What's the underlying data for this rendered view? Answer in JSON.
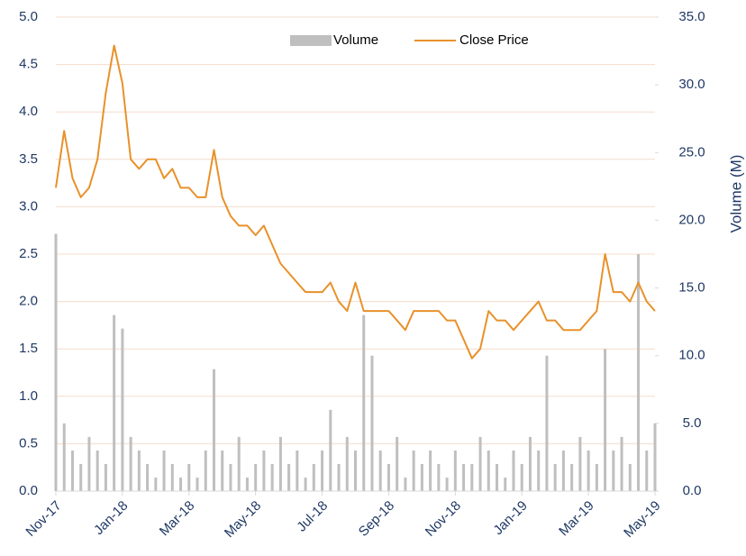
{
  "chart_data": {
    "type": "combo",
    "y2_label": "Volume (M)",
    "categories": [
      "Nov-17",
      null,
      null,
      null,
      null,
      null,
      null,
      null,
      "Jan-18",
      null,
      null,
      null,
      null,
      null,
      null,
      null,
      "Mar-18",
      null,
      null,
      null,
      null,
      null,
      null,
      null,
      "May-18",
      null,
      null,
      null,
      null,
      null,
      null,
      null,
      "Jul-18",
      null,
      null,
      null,
      null,
      null,
      null,
      null,
      "Sep-18",
      null,
      null,
      null,
      null,
      null,
      null,
      null,
      "Nov-18",
      null,
      null,
      null,
      null,
      null,
      null,
      null,
      "Jan-19",
      null,
      null,
      null,
      null,
      null,
      null,
      null,
      "Mar-19",
      null,
      null,
      null,
      null,
      null,
      null,
      null,
      "May-19"
    ],
    "series": [
      {
        "name": "Volume",
        "type": "bar",
        "axis": "y2",
        "color": "#bfbfbf",
        "values": [
          19,
          5,
          3,
          2,
          4,
          3,
          2,
          13,
          12,
          4,
          3,
          2,
          1,
          3,
          2,
          1,
          2,
          1,
          3,
          9,
          3,
          2,
          4,
          1,
          2,
          3,
          2,
          4,
          2,
          3,
          1,
          2,
          3,
          6,
          2,
          4,
          3,
          13,
          10,
          3,
          2,
          4,
          1,
          3,
          2,
          3,
          2,
          1,
          3,
          2,
          2,
          4,
          3,
          2,
          1,
          3,
          2,
          4,
          3,
          10,
          2,
          3,
          2,
          4,
          3,
          2,
          10.5,
          3,
          4,
          2,
          17.5,
          3,
          5
        ]
      },
      {
        "name": "Close Price",
        "type": "line",
        "color": "#e8912a",
        "values": [
          3.2,
          3.8,
          3.3,
          3.1,
          3.2,
          3.5,
          4.2,
          4.7,
          4.3,
          3.5,
          3.4,
          3.5,
          3.5,
          3.3,
          3.4,
          3.2,
          3.2,
          3.1,
          3.1,
          3.6,
          3.1,
          2.9,
          2.8,
          2.8,
          2.7,
          2.8,
          2.6,
          2.4,
          2.3,
          2.2,
          2.1,
          2.1,
          2.1,
          2.2,
          2.0,
          1.9,
          2.2,
          1.9,
          1.9,
          1.9,
          1.9,
          1.8,
          1.7,
          1.9,
          1.9,
          1.9,
          1.9,
          1.8,
          1.8,
          1.6,
          1.4,
          1.5,
          1.9,
          1.8,
          1.8,
          1.7,
          1.8,
          1.9,
          2.0,
          1.8,
          1.8,
          1.7,
          1.7,
          1.7,
          1.8,
          1.9,
          2.5,
          2.1,
          2.1,
          2.0,
          2.2,
          2.0,
          1.9
        ]
      }
    ],
    "ylim": [
      0,
      5
    ],
    "yticks": [
      {
        "value": 0,
        "label": "0.0"
      },
      0.5,
      {
        "value": 1,
        "label": "1.0"
      },
      1.5,
      {
        "value": 2,
        "label": "2.0"
      },
      2.5,
      {
        "value": 3,
        "label": "3.0"
      },
      3.5,
      {
        "value": 4,
        "label": "4.0"
      },
      4.5,
      {
        "value": 5,
        "label": "5.0"
      }
    ],
    "y2lim": [
      0,
      35
    ],
    "y2ticks": [
      {
        "value": 0,
        "label": "0.0"
      },
      {
        "value": 5,
        "label": "5.0"
      },
      {
        "value": 10,
        "label": "10.0"
      },
      {
        "value": 15,
        "label": "15.0"
      },
      {
        "value": 20,
        "label": "20.0"
      },
      {
        "value": 25,
        "label": "25.0"
      },
      {
        "value": 30,
        "label": "30.0"
      },
      {
        "value": 35,
        "label": "35.0"
      }
    ],
    "grid": true,
    "grid_color": "#f5dccb",
    "legend": "top"
  }
}
